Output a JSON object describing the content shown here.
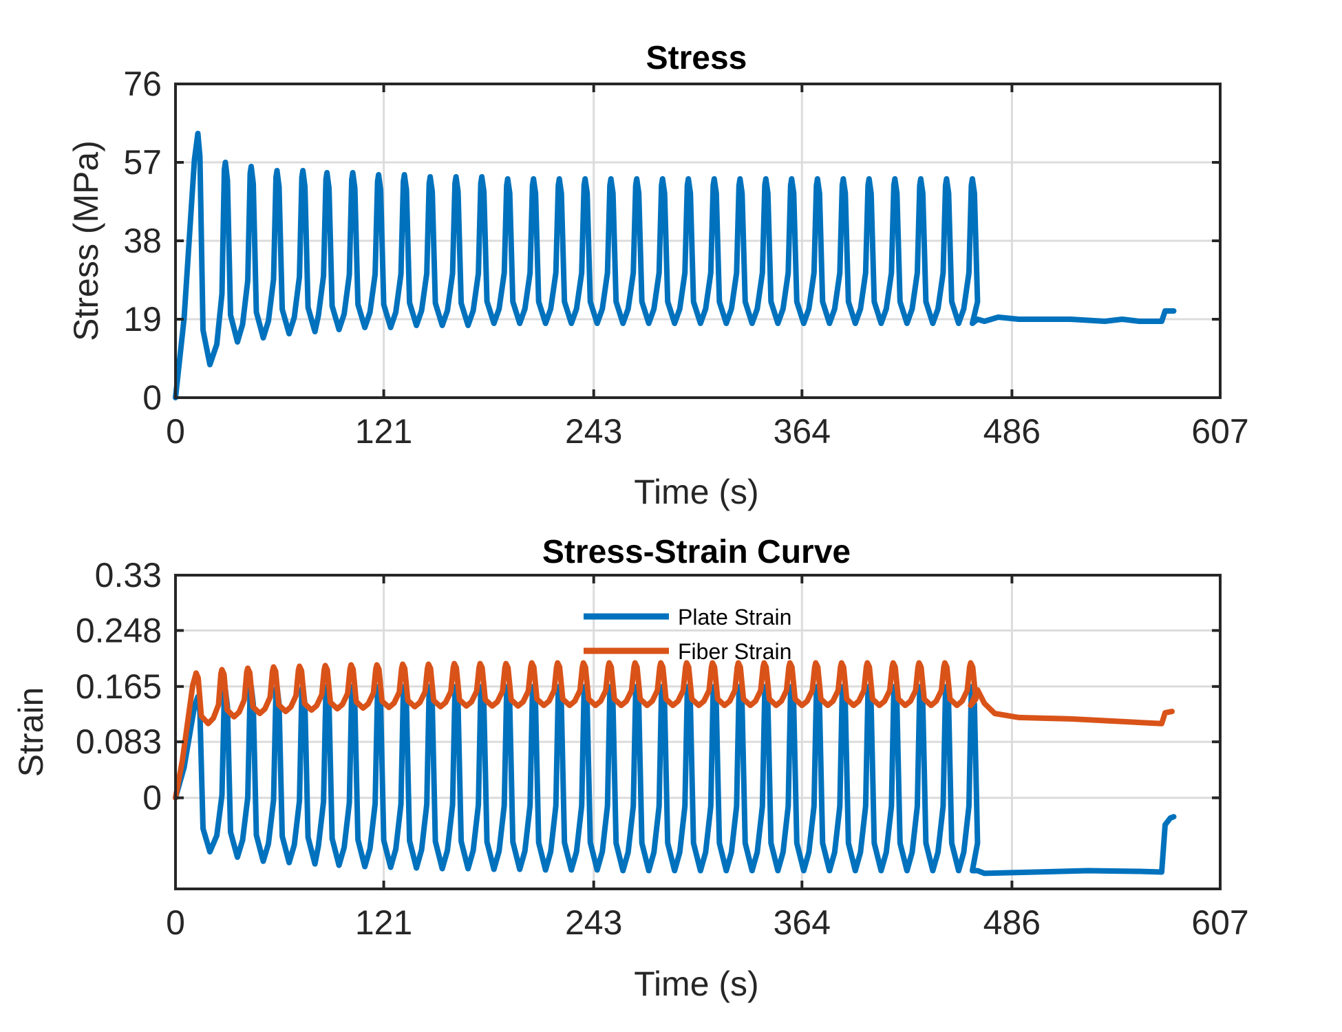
{
  "chart_data": [
    {
      "id": "stress",
      "type": "line",
      "title": "Stress",
      "xlabel": "Time (s)",
      "ylabel": "Stress (MPa)",
      "xlim": [
        0,
        607
      ],
      "ylim": [
        0,
        76
      ],
      "xticks": [
        "0",
        "121",
        "243",
        "364",
        "486",
        "607"
      ],
      "yticks": [
        "0",
        "19",
        "38",
        "57",
        "76"
      ],
      "grid": true,
      "legend": null,
      "series": [
        {
          "color": "#0072BD",
          "peaks_x": [
            13,
            29,
            44,
            59,
            74,
            88,
            103,
            118,
            133,
            148,
            163,
            178,
            193,
            208,
            223,
            238,
            253,
            268,
            283,
            298,
            313,
            328,
            343,
            358,
            373,
            388,
            403,
            418,
            433,
            448,
            463
          ],
          "peak_values": [
            64,
            57,
            56,
            55,
            55,
            54.5,
            54.5,
            54,
            54,
            53.5,
            53.5,
            53.5,
            53,
            53,
            53,
            53,
            53,
            53,
            53,
            53,
            53,
            53,
            53,
            53,
            53,
            53,
            53,
            53,
            53,
            53,
            53
          ],
          "trough_values": [
            8,
            13.5,
            14.5,
            15.5,
            16,
            16.5,
            17,
            17,
            17.5,
            17.5,
            17.5,
            18,
            18,
            18,
            18,
            18,
            18,
            18,
            18,
            18,
            18,
            18,
            18,
            18,
            18,
            18,
            18,
            18,
            18,
            18,
            18
          ],
          "tail": [
            [
              466,
              19
            ],
            [
              470,
              18.5
            ],
            [
              478,
              19.5
            ],
            [
              490,
              19
            ],
            [
              520,
              19
            ],
            [
              540,
              18.5
            ],
            [
              550,
              19
            ],
            [
              560,
              18.5
            ],
            [
              573,
              18.5
            ],
            [
              575,
              21
            ],
            [
              580,
              21
            ]
          ]
        }
      ]
    },
    {
      "id": "stress-strain",
      "type": "line",
      "title": "Stress-Strain Curve",
      "xlabel": "Time (s)",
      "ylabel": "Strain",
      "xlim": [
        0,
        607
      ],
      "ylim": [
        -0.135,
        0.33
      ],
      "xticks": [
        "0",
        "121",
        "243",
        "364",
        "486",
        "607"
      ],
      "yticks": [
        "0",
        "0.083",
        "0.165",
        "0.248",
        "0.33"
      ],
      "grid": true,
      "legend": "top-center",
      "series": [
        {
          "name": "Plate Strain",
          "color": "#0072BD",
          "peaks_x": [
            13,
            29,
            44,
            59,
            74,
            88,
            103,
            118,
            133,
            148,
            163,
            178,
            193,
            208,
            223,
            238,
            253,
            268,
            283,
            298,
            313,
            328,
            343,
            358,
            373,
            388,
            403,
            418,
            433,
            448,
            463
          ],
          "peak_values": [
            0.15,
            0.16,
            0.165,
            0.165,
            0.165,
            0.165,
            0.165,
            0.165,
            0.165,
            0.165,
            0.165,
            0.165,
            0.165,
            0.165,
            0.165,
            0.165,
            0.165,
            0.165,
            0.165,
            0.165,
            0.165,
            0.165,
            0.165,
            0.165,
            0.165,
            0.165,
            0.165,
            0.165,
            0.165,
            0.165,
            0.165
          ],
          "trough_values": [
            -0.08,
            -0.088,
            -0.094,
            -0.096,
            -0.098,
            -0.1,
            -0.102,
            -0.103,
            -0.104,
            -0.105,
            -0.105,
            -0.106,
            -0.106,
            -0.107,
            -0.107,
            -0.107,
            -0.108,
            -0.108,
            -0.108,
            -0.108,
            -0.108,
            -0.108,
            -0.108,
            -0.108,
            -0.108,
            -0.108,
            -0.108,
            -0.108,
            -0.108,
            -0.108,
            -0.108
          ],
          "tail": [
            [
              466,
              -0.108
            ],
            [
              470,
              -0.112
            ],
            [
              500,
              -0.11
            ],
            [
              530,
              -0.108
            ],
            [
              560,
              -0.109
            ],
            [
              573,
              -0.11
            ],
            [
              575,
              -0.04
            ],
            [
              578,
              -0.03
            ],
            [
              580,
              -0.028
            ]
          ]
        },
        {
          "name": "Fiber Strain",
          "color": "#D95319",
          "peaks_x": [
            12,
            27,
            42,
            57,
            72,
            87,
            102,
            117,
            132,
            147,
            162,
            177,
            192,
            207,
            222,
            237,
            252,
            267,
            282,
            297,
            312,
            327,
            342,
            357,
            372,
            387,
            402,
            417,
            432,
            447,
            462
          ],
          "peak_values": [
            0.185,
            0.19,
            0.192,
            0.194,
            0.195,
            0.196,
            0.197,
            0.197,
            0.198,
            0.198,
            0.199,
            0.199,
            0.199,
            0.2,
            0.2,
            0.2,
            0.2,
            0.2,
            0.2,
            0.2,
            0.2,
            0.2,
            0.2,
            0.2,
            0.2,
            0.2,
            0.2,
            0.2,
            0.2,
            0.2,
            0.2
          ],
          "trough_values": [
            0.11,
            0.12,
            0.125,
            0.128,
            0.13,
            0.132,
            0.133,
            0.134,
            0.135,
            0.135,
            0.136,
            0.136,
            0.136,
            0.137,
            0.137,
            0.137,
            0.137,
            0.137,
            0.137,
            0.137,
            0.137,
            0.137,
            0.137,
            0.137,
            0.137,
            0.137,
            0.137,
            0.137,
            0.137,
            0.137,
            0.137
          ],
          "tail": [
            [
              466,
              0.16
            ],
            [
              470,
              0.14
            ],
            [
              476,
              0.125
            ],
            [
              490,
              0.119
            ],
            [
              520,
              0.117
            ],
            [
              550,
              0.113
            ],
            [
              573,
              0.11
            ],
            [
              575,
              0.126
            ],
            [
              579,
              0.128
            ]
          ]
        }
      ]
    }
  ]
}
